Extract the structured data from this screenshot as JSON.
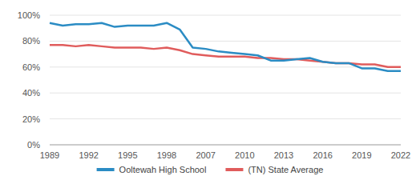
{
  "chart_data": {
    "type": "line",
    "categories": [
      "1989",
      null,
      null,
      "1992",
      null,
      null,
      "1995",
      null,
      null,
      "1998",
      null,
      null,
      "2007",
      null,
      null,
      "2010",
      null,
      null,
      "2013",
      null,
      null,
      "2016",
      null,
      null,
      "2019",
      null,
      null,
      "2022"
    ],
    "series": [
      {
        "name": "Ooltewah High School",
        "color": "#2b8cc4",
        "values": [
          94,
          92,
          93,
          93,
          94,
          91,
          92,
          92,
          92,
          94,
          89,
          75,
          74,
          72,
          71,
          70,
          69,
          65,
          65,
          66,
          67,
          64,
          63,
          63,
          59,
          59,
          57,
          57
        ]
      },
      {
        "name": "(TN) State Average",
        "color": "#e05c5c",
        "values": [
          77,
          77,
          76,
          77,
          76,
          75,
          75,
          75,
          74,
          75,
          73,
          70,
          69,
          68,
          68,
          68,
          67,
          67,
          66,
          66,
          65,
          64,
          63,
          63,
          62,
          62,
          60,
          60
        ]
      }
    ],
    "ylim": [
      0,
      100
    ],
    "yticks": [
      {
        "value": 0,
        "label": "0%"
      },
      {
        "value": 20,
        "label": "20%"
      },
      {
        "value": 40,
        "label": "40%"
      },
      {
        "value": 60,
        "label": "60%"
      },
      {
        "value": 80,
        "label": "80%"
      },
      {
        "value": 100,
        "label": "100%"
      }
    ],
    "grid": true,
    "legend": "bottom"
  }
}
